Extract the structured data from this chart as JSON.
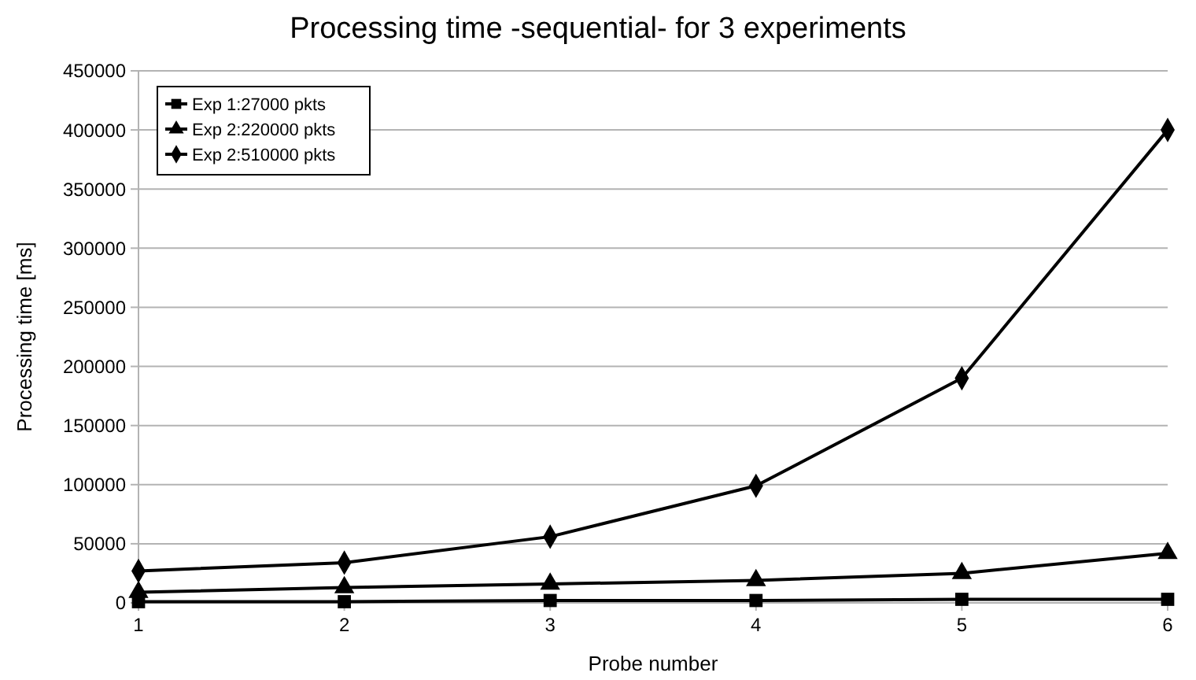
{
  "chart_data": {
    "type": "line",
    "title": "Processing time -sequential- for 3 experiments",
    "xlabel": "Probe number",
    "ylabel": "Processing time [ms]",
    "x": [
      1,
      2,
      3,
      4,
      5,
      6
    ],
    "xlim": [
      1,
      6
    ],
    "xticks": [
      1,
      2,
      3,
      4,
      5,
      6
    ],
    "ylim": [
      0,
      450000
    ],
    "yticks": [
      0,
      50000,
      100000,
      150000,
      200000,
      250000,
      300000,
      350000,
      400000,
      450000
    ],
    "grid": "y",
    "legend": "top left",
    "series": [
      {
        "name": "Exp 1:27000 pkts",
        "color": "#000000",
        "marker": "square",
        "values": [
          1000,
          1000,
          2000,
          2000,
          3000,
          3000
        ]
      },
      {
        "name": "Exp 2:220000 pkts",
        "color": "#000000",
        "marker": "triangle",
        "values": [
          9000,
          13000,
          16000,
          19000,
          25000,
          42000
        ]
      },
      {
        "name": "Exp 2:510000 pkts",
        "color": "#000000",
        "marker": "diamond",
        "values": [
          27000,
          34000,
          56000,
          99000,
          190000,
          400000
        ]
      }
    ]
  }
}
